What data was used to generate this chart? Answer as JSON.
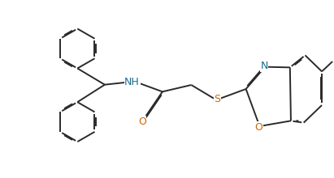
{
  "background_color": "#ffffff",
  "line_color": "#2a2a2a",
  "line_width": 1.4,
  "dbo": 0.012,
  "font_size": 9,
  "color_n": "#1a6b8a",
  "color_o": "#cc6600",
  "color_s": "#cc6600",
  "xlim": [
    0,
    4.11
  ],
  "ylim": [
    0,
    2.2
  ]
}
